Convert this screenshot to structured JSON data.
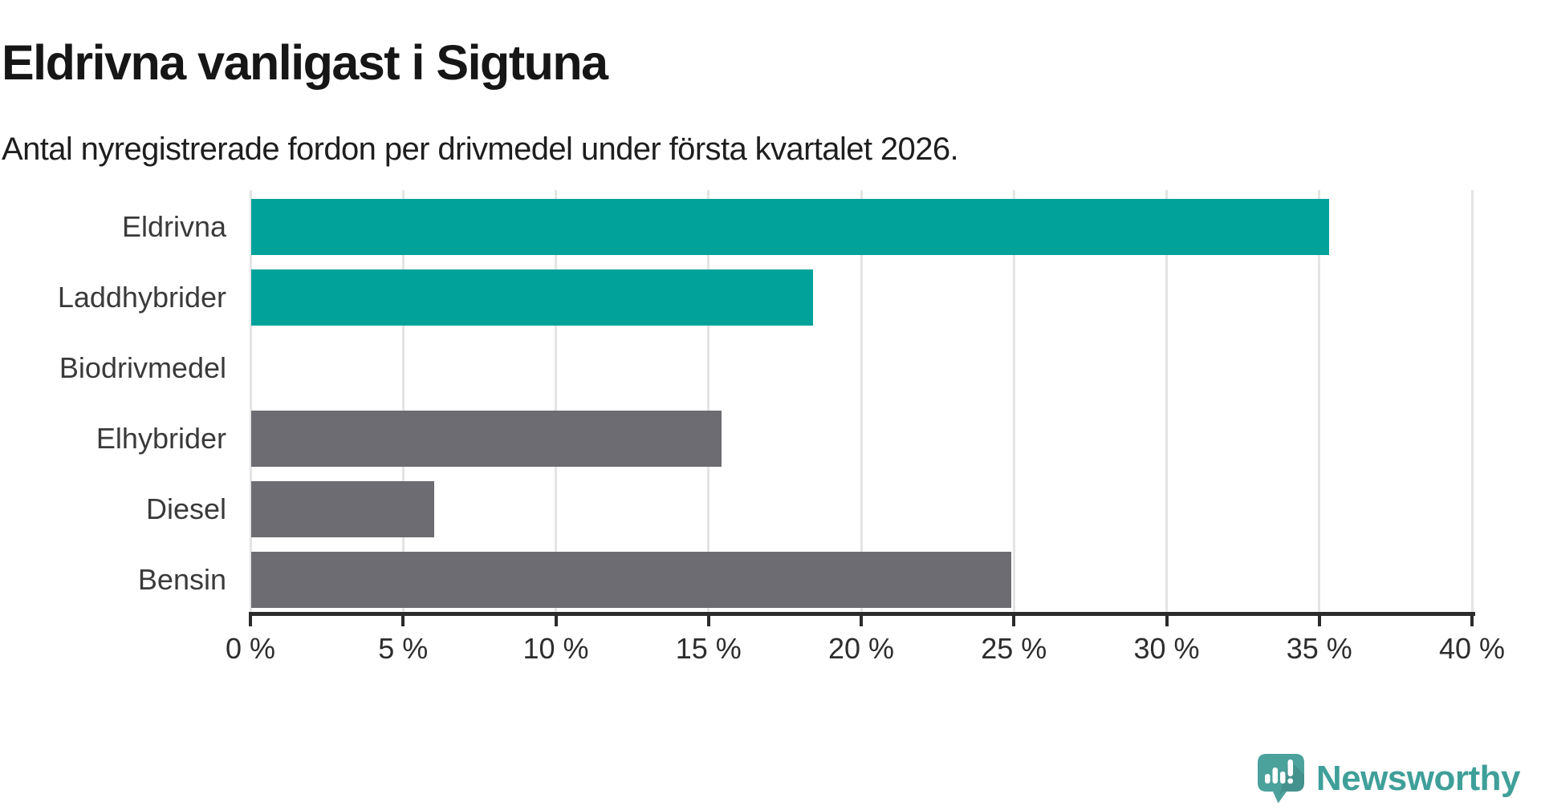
{
  "header": {
    "title": "Eldrivna vanligast i Sigtuna",
    "subtitle": "Antal nyregistrerade fordon per drivmedel under första kvartalet 2026."
  },
  "chart_data": {
    "type": "bar",
    "orientation": "horizontal",
    "title": "Eldrivna vanligast i Sigtuna",
    "subtitle": "Antal nyregistrerade fordon per drivmedel under första kvartalet 2026.",
    "categories": [
      "Eldrivna",
      "Laddhybrider",
      "Biodrivmedel",
      "Elhybrider",
      "Diesel",
      "Bensin"
    ],
    "values": [
      35.3,
      18.4,
      0,
      15.4,
      6.0,
      24.9
    ],
    "unit": "%",
    "bar_colors": [
      "#00a29a",
      "#00a29a",
      "#6d6c72",
      "#6d6c72",
      "#6d6c72",
      "#6d6c72"
    ],
    "xlim": [
      0,
      40
    ],
    "x_ticks": [
      0,
      5,
      10,
      15,
      20,
      25,
      30,
      35,
      40
    ],
    "x_tick_labels": [
      "0 %",
      "5 %",
      "10 %",
      "15 %",
      "20 %",
      "25 %",
      "30 %",
      "35 %",
      "40 %"
    ],
    "grid": true,
    "legend": false,
    "colors": {
      "highlight": "#00a29a",
      "muted": "#6d6c72",
      "gridline": "#e4e4e4",
      "axis": "#2b2b2b",
      "label": "#3a3a3a"
    }
  },
  "logo": {
    "text": "Newsworthy",
    "color": "#3f9f99",
    "icon": "speech-bubble-bar-chart-exclamation"
  }
}
